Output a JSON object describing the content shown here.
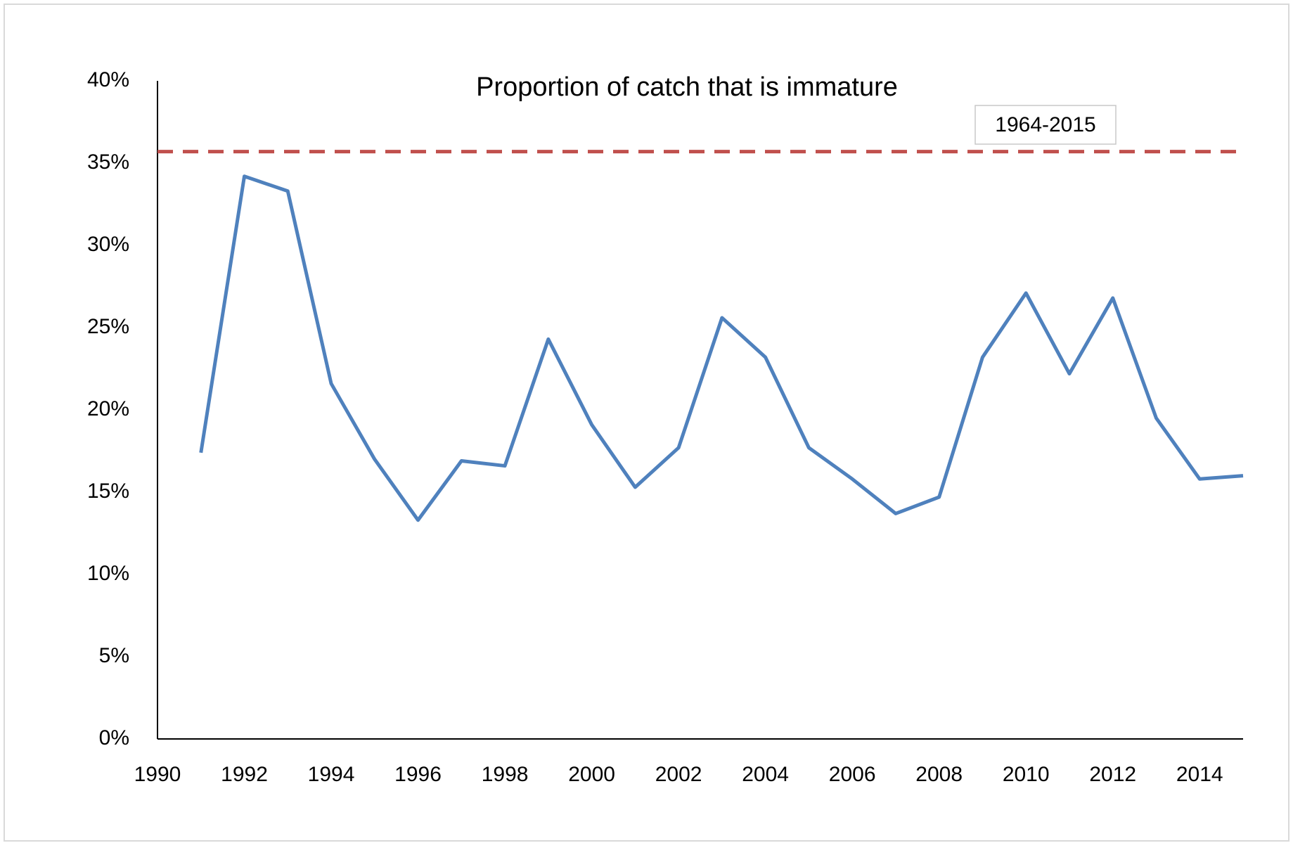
{
  "chart_data": {
    "type": "line",
    "title": "Proportion of catch that is immature",
    "x": [
      1991,
      1992,
      1993,
      1994,
      1995,
      1996,
      1997,
      1998,
      1999,
      2000,
      2001,
      2002,
      2003,
      2004,
      2005,
      2006,
      2007,
      2008,
      2009,
      2010,
      2011,
      2012,
      2013,
      2014,
      2015
    ],
    "values": [
      17.4,
      34.2,
      33.3,
      21.6,
      17.0,
      13.3,
      16.9,
      16.6,
      24.3,
      19.1,
      15.3,
      17.7,
      25.6,
      23.2,
      17.7,
      15.8,
      13.7,
      14.7,
      23.2,
      27.1,
      22.2,
      26.8,
      19.5,
      15.8,
      16.0
    ],
    "color": "#4f81bd",
    "reference_line": {
      "value": 35.7,
      "label": "1964-2015",
      "color": "#c0504d"
    },
    "xlim": [
      1990,
      2015
    ],
    "xticks": [
      1990,
      1992,
      1994,
      1996,
      1998,
      2000,
      2002,
      2004,
      2006,
      2008,
      2010,
      2012,
      2014
    ],
    "ylim": [
      0,
      40
    ],
    "yticks": [
      {
        "value": 0,
        "label": "0%"
      },
      {
        "value": 5,
        "label": "5%"
      },
      {
        "value": 10,
        "label": "10%"
      },
      {
        "value": 15,
        "label": "15%"
      },
      {
        "value": 20,
        "label": "20%"
      },
      {
        "value": 25,
        "label": "25%"
      },
      {
        "value": 30,
        "label": "30%"
      },
      {
        "value": 35,
        "label": "35%"
      },
      {
        "value": 40,
        "label": "40%"
      }
    ],
    "grid": false
  }
}
